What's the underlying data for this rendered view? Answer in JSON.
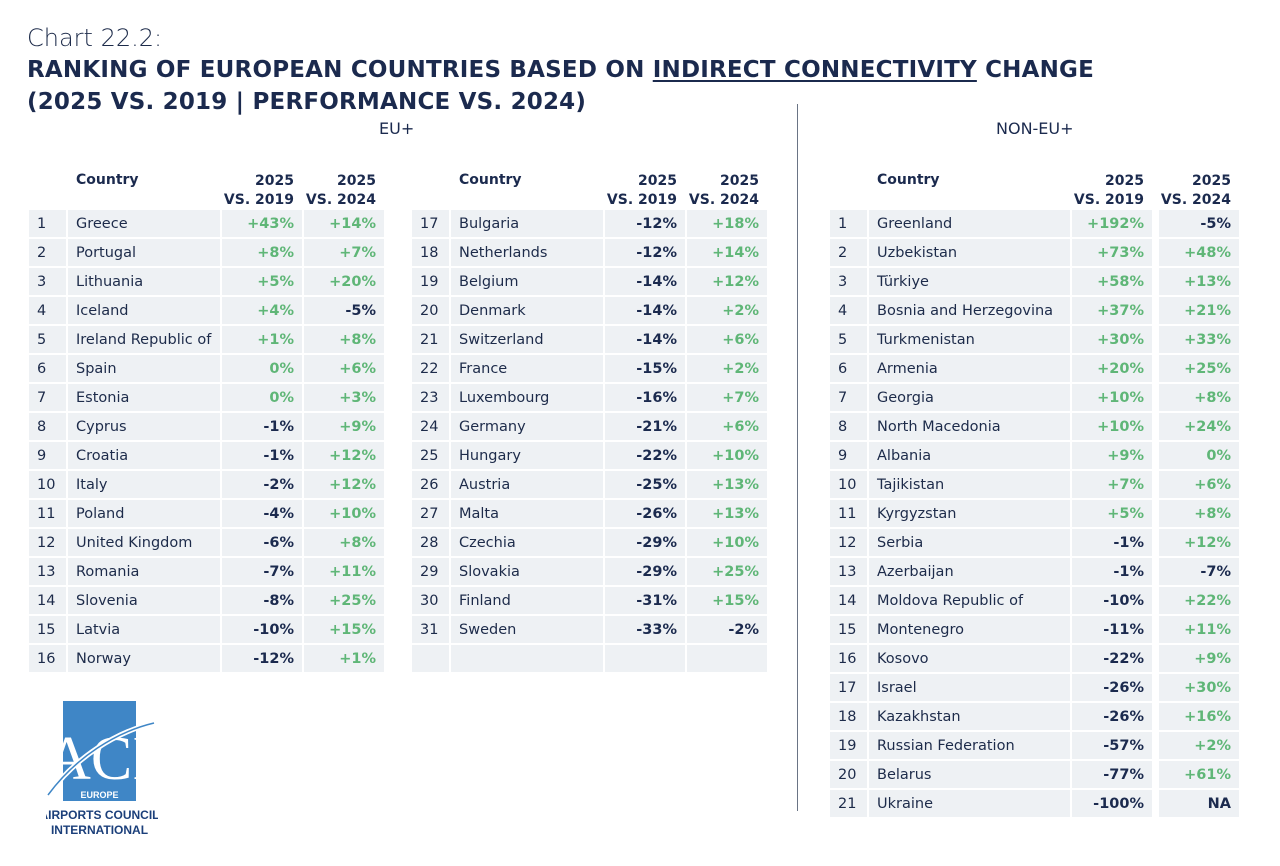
{
  "header": {
    "chart_number": "Chart 22.2:",
    "title_line1_prefix": "RANKING OF EUROPEAN COUNTRIES BASED ON ",
    "title_line1_underlined": "INDIRECT CONNECTIVITY",
    "title_line1_suffix": " CHANGE",
    "title_line2": "(2025 VS. 2019 | PERFORMANCE VS. 2024)"
  },
  "sections": {
    "eu": "EU+",
    "non_eu": "NON-EU+"
  },
  "columns": {
    "country": "Country",
    "c1_top": "2025",
    "c1_bottom": "VS. 2019",
    "c2_top": "2025",
    "c2_bottom": "VS. 2024"
  },
  "colors": {
    "positive": "#5fb677",
    "negative": "#1b2a4e",
    "row_bg": "#eef1f4"
  },
  "logo": {
    "letters": "ACI",
    "sub": "EUROPE",
    "line1": "AIRPORTS COUNCIL",
    "line2": "INTERNATIONAL"
  },
  "chart_data": {
    "type": "table",
    "eu_plus": [
      [
        "1",
        "Greece",
        "+43%",
        "+14%"
      ],
      [
        "2",
        "Portugal",
        "+8%",
        "+7%"
      ],
      [
        "3",
        "Lithuania",
        "+5%",
        "+20%"
      ],
      [
        "4",
        "Iceland",
        "+4%",
        "-5%"
      ],
      [
        "5",
        "Ireland Republic of",
        "+1%",
        "+8%"
      ],
      [
        "6",
        "Spain",
        "0%",
        "+6%"
      ],
      [
        "7",
        "Estonia",
        "0%",
        "+3%"
      ],
      [
        "8",
        "Cyprus",
        "-1%",
        "+9%"
      ],
      [
        "9",
        "Croatia",
        "-1%",
        "+12%"
      ],
      [
        "10",
        "Italy",
        "-2%",
        "+12%"
      ],
      [
        "11",
        "Poland",
        "-4%",
        "+10%"
      ],
      [
        "12",
        "United Kingdom",
        "-6%",
        "+8%"
      ],
      [
        "13",
        "Romania",
        "-7%",
        "+11%"
      ],
      [
        "14",
        "Slovenia",
        "-8%",
        "+25%"
      ],
      [
        "15",
        "Latvia",
        "-10%",
        "+15%"
      ],
      [
        "16",
        "Norway",
        "-12%",
        "+1%"
      ],
      [
        "17",
        "Bulgaria",
        "-12%",
        "+18%"
      ],
      [
        "18",
        "Netherlands",
        "-12%",
        "+14%"
      ],
      [
        "19",
        "Belgium",
        "-14%",
        "+12%"
      ],
      [
        "20",
        "Denmark",
        "-14%",
        "+2%"
      ],
      [
        "21",
        "Switzerland",
        "-14%",
        "+6%"
      ],
      [
        "22",
        "France",
        "-15%",
        "+2%"
      ],
      [
        "23",
        "Luxembourg",
        "-16%",
        "+7%"
      ],
      [
        "24",
        "Germany",
        "-21%",
        "+6%"
      ],
      [
        "25",
        "Hungary",
        "-22%",
        "+10%"
      ],
      [
        "26",
        "Austria",
        "-25%",
        "+13%"
      ],
      [
        "27",
        "Malta",
        "-26%",
        "+13%"
      ],
      [
        "28",
        "Czechia",
        "-29%",
        "+10%"
      ],
      [
        "29",
        "Slovakia",
        "-29%",
        "+25%"
      ],
      [
        "30",
        "Finland",
        "-31%",
        "+15%"
      ],
      [
        "31",
        "Sweden",
        "-33%",
        "-2%"
      ]
    ],
    "non_eu_plus": [
      [
        "1",
        "Greenland",
        "+192%",
        "-5%"
      ],
      [
        "2",
        "Uzbekistan",
        "+73%",
        "+48%"
      ],
      [
        "3",
        "Türkiye",
        "+58%",
        "+13%"
      ],
      [
        "4",
        "Bosnia and Herzegovina",
        "+37%",
        "+21%"
      ],
      [
        "5",
        "Turkmenistan",
        "+30%",
        "+33%"
      ],
      [
        "6",
        "Armenia",
        "+20%",
        "+25%"
      ],
      [
        "7",
        "Georgia",
        "+10%",
        "+8%"
      ],
      [
        "8",
        "North Macedonia",
        "+10%",
        "+24%"
      ],
      [
        "9",
        "Albania",
        "+9%",
        "0%"
      ],
      [
        "10",
        "Tajikistan",
        "+7%",
        "+6%"
      ],
      [
        "11",
        "Kyrgyzstan",
        "+5%",
        "+8%"
      ],
      [
        "12",
        "Serbia",
        "-1%",
        "+12%"
      ],
      [
        "13",
        "Azerbaijan",
        "-1%",
        "-7%"
      ],
      [
        "14",
        "Moldova Republic of",
        "-10%",
        "+22%"
      ],
      [
        "15",
        "Montenegro",
        "-11%",
        "+11%"
      ],
      [
        "16",
        "Kosovo",
        "-22%",
        "+9%"
      ],
      [
        "17",
        "Israel",
        "-26%",
        "+30%"
      ],
      [
        "18",
        "Kazakhstan",
        "-26%",
        "+16%"
      ],
      [
        "19",
        "Russian Federation",
        "-57%",
        "+2%"
      ],
      [
        "20",
        "Belarus",
        "-77%",
        "+61%"
      ],
      [
        "21",
        "Ukraine",
        "-100%",
        "NA"
      ]
    ]
  }
}
